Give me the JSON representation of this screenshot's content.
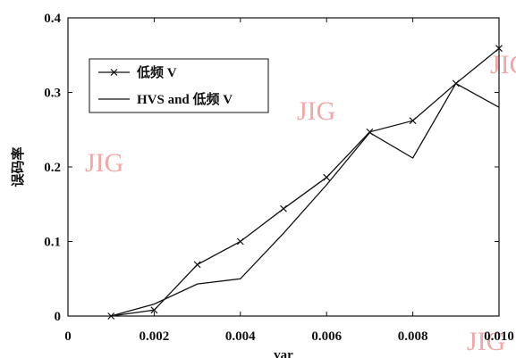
{
  "chart_data": {
    "type": "line",
    "xlabel": "var",
    "ylabel": "误码率",
    "xlim": [
      0,
      0.01
    ],
    "ylim": [
      0,
      0.4
    ],
    "x_ticks": [
      0,
      0.002,
      0.004,
      0.006,
      0.008,
      0.01
    ],
    "x_tick_labels": [
      "0",
      "0.002",
      "0.004",
      "0.006",
      "0.008",
      "0.010"
    ],
    "y_ticks": [
      0,
      0.1,
      0.2,
      0.3,
      0.4
    ],
    "y_tick_labels": [
      "0",
      "0.1",
      "0.2",
      "0.3",
      "0.4"
    ],
    "grid": false,
    "legend_position": "top-left",
    "series": [
      {
        "name": "低频 V",
        "marker": "x",
        "color": "#111111",
        "x": [
          0.001,
          0.002,
          0.003,
          0.004,
          0.005,
          0.006,
          0.007,
          0.008,
          0.009,
          0.01
        ],
        "values": [
          0.0,
          0.008,
          0.069,
          0.1,
          0.144,
          0.186,
          0.247,
          0.262,
          0.312,
          0.359
        ]
      },
      {
        "name": "HVS and 低频 V",
        "marker": "none",
        "color": "#111111",
        "x": [
          0.001,
          0.002,
          0.003,
          0.004,
          0.005,
          0.006,
          0.007,
          0.008,
          0.009,
          0.01
        ],
        "values": [
          0.0,
          0.016,
          0.043,
          0.05,
          0.111,
          0.176,
          0.246,
          0.212,
          0.312,
          0.28
        ]
      }
    ]
  },
  "watermarks": [
    "JIG",
    "JIG",
    "JIG",
    "JIG"
  ]
}
